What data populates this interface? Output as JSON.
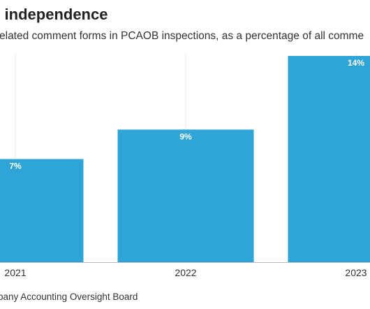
{
  "header": {
    "title": "g independence",
    "subtitle": "elated comment forms in PCAOB inspections, as a percentage of all comme"
  },
  "footer": {
    "source": "pany Accounting Oversight Board"
  },
  "colors": {
    "bar": "#2fa4d7",
    "gridline": "#e6e6e6",
    "baseline": "#bdbdbd"
  },
  "chart_data": {
    "type": "bar",
    "categories": [
      "2021",
      "2022",
      "2023"
    ],
    "values": [
      7,
      9,
      14
    ],
    "value_labels": [
      "7%",
      "9%",
      "14%"
    ],
    "ylim": [
      0,
      14
    ],
    "grid": true,
    "legend": "none"
  }
}
